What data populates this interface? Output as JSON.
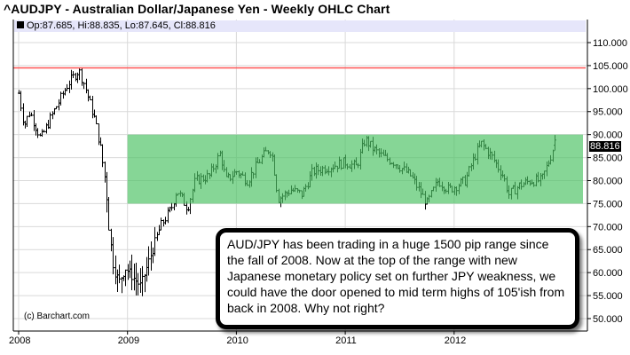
{
  "title": "^AUDJPY - Australian Dollar/Japanese Yen - Weekly OHLC Chart",
  "legend": "Op:87.685, Hi:88.835, Lo:87.645, Cl:88.816",
  "last_price_tag": "88.816",
  "copyright": "(c) Barchart.com",
  "annotation": "AUD/JPY has been trading in a huge 1500 pip range since the fall of 2008. Now at the top of the range with new Japanese monetary policy set on further JPY weakness, we could have the door opened to mid term highs of 105'ish from back in 2008.  Why not right?",
  "colors": {
    "bars": "#000000",
    "range_band": "#4dc264",
    "resistance": "#ff5555",
    "grid": "#d9d9d9"
  },
  "chart_data": {
    "type": "ohlc",
    "title": "^AUDJPY - Australian Dollar/Japanese Yen - Weekly OHLC Chart",
    "ylim": [
      47,
      112
    ],
    "xlim": [
      2007.95,
      2013.05
    ],
    "y_ticks": [
      "110.000",
      "105.000",
      "100.000",
      "95.000",
      "90.000",
      "85.000",
      "80.000",
      "75.000",
      "70.000",
      "65.000",
      "60.000",
      "55.000",
      "50.000"
    ],
    "y_tick_values": [
      110,
      105,
      100,
      95,
      90,
      85,
      80,
      75,
      70,
      65,
      60,
      55,
      50
    ],
    "x_ticks": [
      "2008",
      "2009",
      "2010",
      "2011",
      "2012"
    ],
    "x_tick_values": [
      2008,
      2009,
      2010,
      2011,
      2012
    ],
    "resistance_line": 104.5,
    "range_band": {
      "from": 2009.0,
      "to": 2013.05,
      "low": 75,
      "high": 90
    },
    "last_bar": {
      "open": 87.685,
      "high": 88.835,
      "low": 87.645,
      "close": 88.816
    },
    "close_path": [
      [
        2008.0,
        99
      ],
      [
        2008.05,
        92
      ],
      [
        2008.1,
        95
      ],
      [
        2008.2,
        89
      ],
      [
        2008.3,
        94
      ],
      [
        2008.45,
        101
      ],
      [
        2008.55,
        104
      ],
      [
        2008.6,
        101
      ],
      [
        2008.7,
        93
      ],
      [
        2008.75,
        87
      ],
      [
        2008.8,
        79
      ],
      [
        2008.83,
        69
      ],
      [
        2008.87,
        61
      ],
      [
        2008.92,
        58
      ],
      [
        2008.98,
        61
      ],
      [
        2009.05,
        59
      ],
      [
        2009.12,
        57
      ],
      [
        2009.2,
        63
      ],
      [
        2009.3,
        70
      ],
      [
        2009.4,
        74
      ],
      [
        2009.45,
        78
      ],
      [
        2009.55,
        74
      ],
      [
        2009.62,
        80
      ],
      [
        2009.75,
        81
      ],
      [
        2009.85,
        86
      ],
      [
        2009.9,
        80
      ],
      [
        2010.0,
        82
      ],
      [
        2010.1,
        80
      ],
      [
        2010.2,
        84
      ],
      [
        2010.3,
        87
      ],
      [
        2010.33,
        85
      ],
      [
        2010.38,
        76
      ],
      [
        2010.5,
        78
      ],
      [
        2010.6,
        77
      ],
      [
        2010.7,
        82
      ],
      [
        2010.85,
        83
      ],
      [
        2011.0,
        84
      ],
      [
        2011.1,
        83
      ],
      [
        2011.18,
        89
      ],
      [
        2011.25,
        87
      ],
      [
        2011.35,
        85
      ],
      [
        2011.45,
        84
      ],
      [
        2011.6,
        81
      ],
      [
        2011.7,
        77
      ],
      [
        2011.75,
        75
      ],
      [
        2011.85,
        80
      ],
      [
        2011.95,
        78
      ],
      [
        2012.1,
        80
      ],
      [
        2012.2,
        86
      ],
      [
        2012.25,
        88
      ],
      [
        2012.35,
        85
      ],
      [
        2012.45,
        81
      ],
      [
        2012.5,
        77
      ],
      [
        2012.6,
        79
      ],
      [
        2012.7,
        80
      ],
      [
        2012.8,
        80
      ],
      [
        2012.88,
        85
      ],
      [
        2012.93,
        88.816
      ]
    ]
  }
}
